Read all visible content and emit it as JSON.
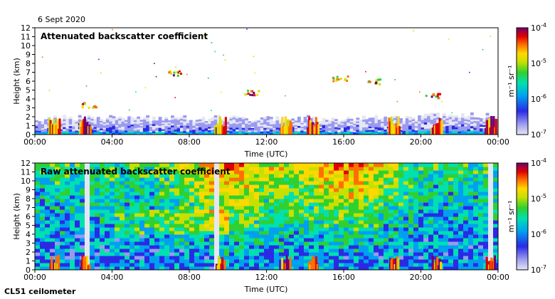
{
  "date_label": "6 Sept 2020",
  "instrument_label": "CL51 ceilometer",
  "chart_data": [
    {
      "type": "heatmap",
      "title": "Attenuated backscatter coefficient",
      "xlabel": "Time (UTC)",
      "ylabel": "Height (km)",
      "x_ticks": [
        "00:00",
        "04:00",
        "08:00",
        "12:00",
        "16:00",
        "20:00",
        "00:00"
      ],
      "x_range_hours": [
        0,
        24
      ],
      "y_ticks": [
        0,
        1,
        2,
        3,
        4,
        5,
        6,
        7,
        8,
        9,
        10,
        11,
        12
      ],
      "ylim": [
        0,
        12
      ],
      "colorbar": {
        "scale": "log",
        "range": [
          1e-07,
          0.0001
        ],
        "tick_exponents": [
          -4,
          -5,
          -6,
          -7
        ],
        "unit_label": "m⁻¹ sr⁻¹"
      },
      "features": {
        "noise_band_top_km": 2,
        "strong_layers_hours": [
          1.0,
          2.6,
          9.6,
          13.0,
          14.4,
          18.6,
          20.8,
          23.6
        ],
        "cloud_patches": [
          {
            "hour": 2.8,
            "height_km": 3.4
          },
          {
            "hour": 11.2,
            "height_km": 4.8
          },
          {
            "hour": 15.8,
            "height_km": 6.4
          },
          {
            "hour": 17.5,
            "height_km": 6.0
          },
          {
            "hour": 20.6,
            "height_km": 4.4
          },
          {
            "hour": 7.3,
            "height_km": 7.0
          }
        ]
      }
    },
    {
      "type": "heatmap",
      "title": "Raw attenuated backscatter coefficient",
      "xlabel": "Time (UTC)",
      "ylabel": "Height (km)",
      "x_ticks": [
        "00:00",
        "04:00",
        "08:00",
        "12:00",
        "16:00",
        "20:00",
        "00:00"
      ],
      "x_range_hours": [
        0,
        24
      ],
      "y_ticks": [
        0,
        1,
        2,
        3,
        4,
        5,
        6,
        7,
        8,
        9,
        10,
        11,
        12
      ],
      "ylim": [
        0,
        12
      ],
      "colorbar": {
        "scale": "log",
        "range": [
          1e-07,
          0.0001
        ],
        "tick_exponents": [
          -4,
          -5,
          -6,
          -7
        ],
        "unit_label": "m⁻¹ sr⁻¹"
      },
      "features": {
        "gap_hours": [
          2.6,
          9.5,
          23.5
        ],
        "high_noise_hours": [
          8.0,
          14.0
        ]
      }
    }
  ]
}
